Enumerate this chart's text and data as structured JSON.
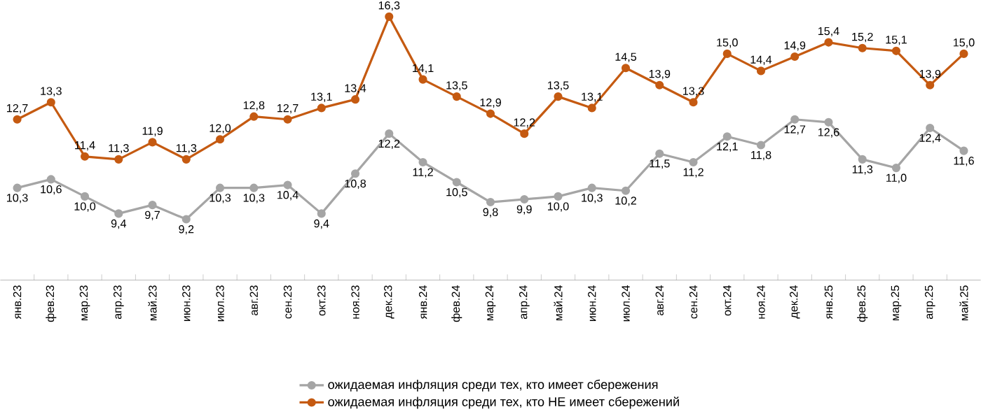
{
  "chart_data": {
    "type": "line",
    "categories": [
      "янв.23",
      "фев.23",
      "мар.23",
      "апр.23",
      "май.23",
      "июн.23",
      "июл.23",
      "авг.23",
      "сен.23",
      "окт.23",
      "ноя.23",
      "дек.23",
      "янв.24",
      "фев.24",
      "мар.24",
      "апр.24",
      "май.24",
      "июн.24",
      "июл.24",
      "авг.24",
      "сен.24",
      "окт.24",
      "ноя.24",
      "дек.24",
      "янв.25",
      "фев.25",
      "мар.25",
      "апр.25",
      "май.25"
    ],
    "series": [
      {
        "name": "ожидаемая инфляция  среди тех, кто имеет сбережения",
        "color": "#a5a5a5",
        "values": [
          10.3,
          10.6,
          10.0,
          9.4,
          9.7,
          9.2,
          10.3,
          10.3,
          10.4,
          9.4,
          10.8,
          12.2,
          11.2,
          10.5,
          9.8,
          9.9,
          10.0,
          10.3,
          10.2,
          11.5,
          11.2,
          12.1,
          11.8,
          12.7,
          12.6,
          11.3,
          11.0,
          12.4,
          11.6
        ],
        "value_labels": [
          "10,3",
          "10,6",
          "10,0",
          "9,4",
          "9,7",
          "9,2",
          "10,3",
          "10,3",
          "10,4",
          "9,4",
          "10,8",
          "12,2",
          "11,2",
          "10,5",
          "9,8",
          "9,9",
          "10,0",
          "10,3",
          "10,2",
          "11,5",
          "11,2",
          "12,1",
          "11,8",
          "12,7",
          "12,6",
          "11,3",
          "11,0",
          "12,4",
          "11,6"
        ]
      },
      {
        "name": "ожидаемая инфляция  среди тех, кто НЕ имеет сбережений",
        "color": "#c55a11",
        "values": [
          12.7,
          13.3,
          11.4,
          11.3,
          11.9,
          11.3,
          12.0,
          12.8,
          12.7,
          13.1,
          13.4,
          16.3,
          14.1,
          13.5,
          12.9,
          12.2,
          13.5,
          13.1,
          14.5,
          13.9,
          13.3,
          15.0,
          14.4,
          14.9,
          15.4,
          15.2,
          15.1,
          13.9,
          15.0
        ],
        "value_labels": [
          "12,7",
          "13,3",
          "11,4",
          "11,3",
          "11,9",
          "11,3",
          "12,0",
          "12,8",
          "12,7",
          "13,1",
          "13,4",
          "16,3",
          "14,1",
          "13,5",
          "12,9",
          "12,2",
          "13,5",
          "13,1",
          "14,5",
          "13,9",
          "13,3",
          "15,0",
          "14,4",
          "14,9",
          "15,4",
          "15,2",
          "15,1",
          "13,9",
          "15,0"
        ]
      }
    ],
    "marker": "circle",
    "legend": "bottom"
  }
}
